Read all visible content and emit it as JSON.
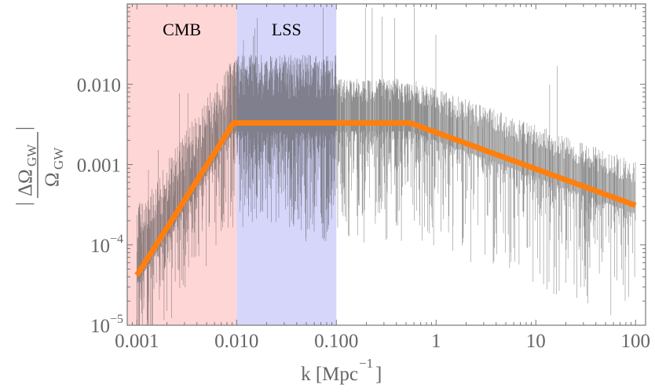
{
  "chart_data": {
    "type": "line",
    "xlabel": "k  [Mpc",
    "xlabel_sup": "−1",
    "xlabel_close": "]",
    "ylabel_num": "ΔΩ",
    "ylabel_den": "Ω",
    "ylabel_sub": "GW",
    "xscale": "log",
    "yscale": "log",
    "xlim": [
      0.0008,
      126
    ],
    "ylim": [
      1e-05,
      0.1
    ],
    "x_ticks": [
      {
        "value": 0.001,
        "label": "0.001"
      },
      {
        "value": 0.01,
        "label": "0.010"
      },
      {
        "value": 0.1,
        "label": "0.100"
      },
      {
        "value": 1,
        "label": "1"
      },
      {
        "value": 10,
        "label": "10"
      },
      {
        "value": 100,
        "label": "100"
      }
    ],
    "y_ticks": [
      {
        "value": 0.01,
        "label": "0.010",
        "sup": ""
      },
      {
        "value": 0.001,
        "label": "0.001",
        "sup": ""
      },
      {
        "value": 0.0001,
        "label": "10",
        "sup": "−4"
      },
      {
        "value": 1e-05,
        "label": "10",
        "sup": "−5"
      }
    ],
    "regions": [
      {
        "label": "CMB",
        "x": [
          0.0008,
          0.01
        ],
        "color": "#ffd6d6"
      },
      {
        "label": "LSS",
        "x": [
          0.01,
          0.1
        ],
        "color": "#d6d6fb"
      }
    ],
    "series": [
      {
        "kind": "envelope",
        "color": "#ff7f0e",
        "x": [
          0.001,
          0.0093,
          0.55,
          100
        ],
        "y": [
          4.2e-05,
          0.0033,
          0.0033,
          0.00031
        ]
      },
      {
        "kind": "noisy-data",
        "color": "#555555"
      }
    ],
    "grid": false
  }
}
